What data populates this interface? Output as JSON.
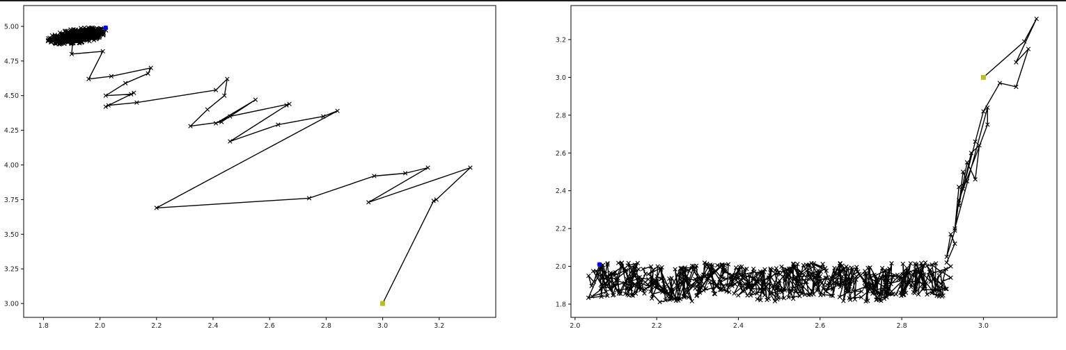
{
  "chart_data": [
    {
      "type": "line",
      "title": "",
      "xlabel": "",
      "ylabel": "",
      "xlim": [
        1.73,
        3.4
      ],
      "ylim": [
        2.9,
        5.15
      ],
      "x_ticks": [
        "1.8",
        "2.0",
        "2.2",
        "2.4",
        "2.6",
        "2.8",
        "3.0",
        "3.2"
      ],
      "y_ticks": [
        "3.00",
        "3.25",
        "3.50",
        "3.75",
        "4.00",
        "4.25",
        "4.50",
        "4.75",
        "5.00"
      ],
      "marker": "x",
      "line_color": "#000000",
      "start_point": {
        "x": 3.0,
        "y": 3.0,
        "color": "#bcbd22"
      },
      "end_point": {
        "x": 2.02,
        "y": 4.99,
        "color": "#0000ff"
      },
      "cluster": {
        "center_x": 1.92,
        "center_y": 4.93,
        "spread_x": 0.14,
        "spread_y": 0.12,
        "count": 220
      },
      "series": [
        {
          "x": [
            3.0,
            3.18,
            3.19,
            3.31,
            2.95,
            3.16,
            3.08,
            2.97,
            2.74,
            2.2,
            2.84,
            2.79,
            2.63,
            2.46,
            2.66,
            2.67,
            2.46,
            2.41,
            2.55,
            2.43,
            2.32,
            2.38,
            2.44,
            2.45,
            2.41,
            2.13,
            2.03,
            2.02,
            2.12,
            2.11,
            2.02,
            2.09,
            2.17,
            2.18,
            2.04,
            1.96,
            2.01,
            1.9
          ],
          "y": [
            3.0,
            3.74,
            3.75,
            3.98,
            3.73,
            3.98,
            3.94,
            3.92,
            3.76,
            3.69,
            4.39,
            4.35,
            4.29,
            4.17,
            4.43,
            4.44,
            4.35,
            4.3,
            4.47,
            4.31,
            4.28,
            4.4,
            4.5,
            4.62,
            4.54,
            4.45,
            4.43,
            4.42,
            4.52,
            4.51,
            4.5,
            4.59,
            4.66,
            4.7,
            4.64,
            4.62,
            4.82,
            4.8
          ]
        }
      ]
    },
    {
      "type": "line",
      "title": "",
      "xlabel": "",
      "ylabel": "",
      "xlim": [
        1.99,
        3.18
      ],
      "ylim": [
        1.73,
        3.38
      ],
      "x_ticks": [
        "2.0",
        "2.2",
        "2.4",
        "2.6",
        "2.8",
        "3.0"
      ],
      "y_ticks": [
        "1.8",
        "2.0",
        "2.2",
        "2.4",
        "2.6",
        "2.8",
        "3.0",
        "3.2"
      ],
      "marker": "x",
      "line_color": "#000000",
      "start_point": {
        "x": 3.0,
        "y": 3.0,
        "color": "#bcbd22"
      },
      "end_point": {
        "x": 2.06,
        "y": 2.01,
        "color": "#0000ff"
      },
      "band": {
        "x_start": 2.05,
        "x_end": 2.9,
        "y_low": 1.8,
        "y_high": 2.02,
        "count": 620
      },
      "series": [
        {
          "x": [
            3.0,
            3.1,
            3.13,
            3.08,
            3.11,
            3.08,
            3.04,
            3.0,
            2.98,
            2.95,
            2.97,
            2.99,
            2.98,
            2.96,
            2.94,
            2.95,
            2.96,
            2.94,
            2.93,
            3.01,
            3.01,
            2.94,
            2.93,
            2.91,
            2.92,
            2.93,
            2.91,
            2.92,
            2.9,
            2.92,
            2.9,
            2.91,
            2.9
          ],
          "y": [
            3.0,
            3.19,
            3.31,
            3.08,
            3.15,
            2.95,
            2.97,
            2.82,
            2.66,
            2.41,
            2.6,
            2.64,
            2.46,
            2.55,
            2.32,
            2.5,
            2.45,
            2.42,
            2.2,
            2.84,
            2.75,
            2.35,
            2.19,
            2.05,
            2.17,
            2.12,
            2.02,
            2.0,
            1.97,
            1.94,
            1.92,
            1.88,
            1.9
          ]
        }
      ]
    }
  ]
}
